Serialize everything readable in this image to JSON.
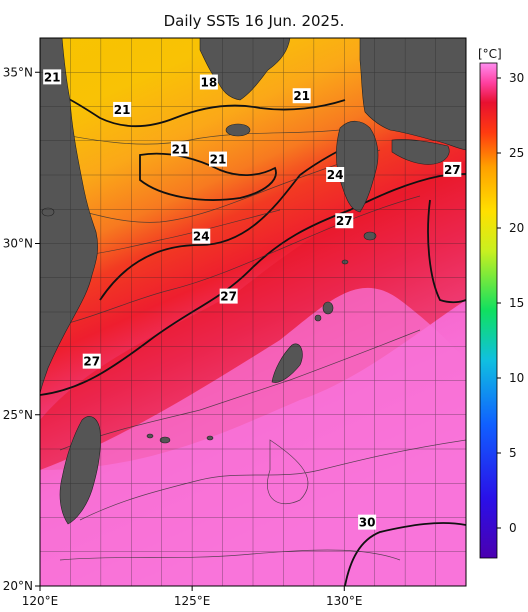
{
  "title": "Daily SSTs 16 Jun. 2025.",
  "map": {
    "lon_range": [
      120,
      134
    ],
    "lat_range": [
      20,
      36
    ],
    "x_ticks": [
      {
        "lon": 120,
        "label": "120°E"
      },
      {
        "lon": 125,
        "label": "125°E"
      },
      {
        "lon": 130,
        "label": "130°E"
      }
    ],
    "y_ticks": [
      {
        "lat": 35,
        "label": "35°N"
      },
      {
        "lat": 30,
        "label": "30°N"
      },
      {
        "lat": 25,
        "label": "25°N"
      },
      {
        "lat": 20,
        "label": "20°N"
      }
    ]
  },
  "colorbar": {
    "unit": "[°C]",
    "min": -2,
    "max": 31,
    "ticks": [
      "30",
      "25",
      "20",
      "15",
      "10",
      "5",
      "0"
    ],
    "tick_values": [
      30,
      25,
      20,
      15,
      10,
      5,
      0
    ]
  },
  "contour_labels": [
    {
      "text": "21",
      "lon": 120.4,
      "lat": 34.85
    },
    {
      "text": "18",
      "lon": 125.55,
      "lat": 34.7
    },
    {
      "text": "21",
      "lon": 122.7,
      "lat": 33.9
    },
    {
      "text": "21",
      "lon": 128.6,
      "lat": 34.3
    },
    {
      "text": "21",
      "lon": 124.6,
      "lat": 32.75
    },
    {
      "text": "21",
      "lon": 125.85,
      "lat": 32.45
    },
    {
      "text": "24",
      "lon": 129.7,
      "lat": 32.0
    },
    {
      "text": "27",
      "lon": 133.55,
      "lat": 32.15
    },
    {
      "text": "27",
      "lon": 130.0,
      "lat": 30.65
    },
    {
      "text": "24",
      "lon": 125.3,
      "lat": 30.2
    },
    {
      "text": "27",
      "lon": 126.2,
      "lat": 28.45
    },
    {
      "text": "27",
      "lon": 121.7,
      "lat": 26.55
    },
    {
      "text": "30",
      "lon": 130.75,
      "lat": 21.85
    }
  ]
}
